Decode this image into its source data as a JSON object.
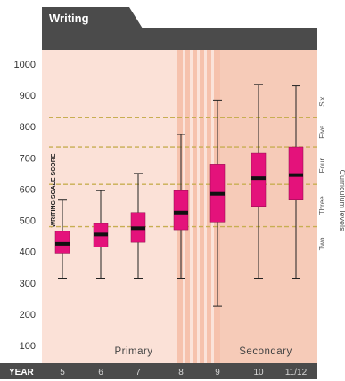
{
  "header": {
    "title": "Writing"
  },
  "chart_data": {
    "type": "box",
    "ylabel": "WRITING SCALE SCORE",
    "ylim": [
      0,
      1050
    ],
    "yticks": [
      "100",
      "200",
      "300",
      "400",
      "500",
      "600",
      "700",
      "800",
      "900",
      "1000"
    ],
    "x_axis_label": "YEAR",
    "categories": [
      "5",
      "6",
      "7",
      "8",
      "9",
      "10",
      "11/12"
    ],
    "series": [
      {
        "boxes": [
          {
            "category": "5",
            "min": 315,
            "q1": 395,
            "median": 425,
            "q3": 465,
            "max": 565
          },
          {
            "category": "6",
            "min": 315,
            "q1": 415,
            "median": 455,
            "q3": 490,
            "max": 595
          },
          {
            "category": "7",
            "min": 315,
            "q1": 430,
            "median": 475,
            "q3": 525,
            "max": 650
          },
          {
            "category": "8",
            "min": 315,
            "q1": 470,
            "median": 525,
            "q3": 595,
            "max": 775
          },
          {
            "category": "9",
            "min": 225,
            "q1": 495,
            "median": 585,
            "q3": 680,
            "max": 885
          },
          {
            "category": "10",
            "min": 315,
            "q1": 545,
            "median": 635,
            "q3": 715,
            "max": 935
          },
          {
            "category": "11/12",
            "min": 315,
            "q1": 565,
            "median": 645,
            "q3": 735,
            "max": 930
          }
        ]
      }
    ],
    "phases": [
      {
        "label": "Primary"
      },
      {
        "label": "Secondary"
      }
    ],
    "curriculum": {
      "title": "Curriculum levels",
      "thresholds": [
        480,
        615,
        735,
        830
      ],
      "levels": [
        {
          "label": "Two",
          "center": 425
        },
        {
          "label": "Three",
          "center": 548
        },
        {
          "label": "Four",
          "center": 675
        },
        {
          "label": "Five",
          "center": 783
        },
        {
          "label": "Six",
          "center": 880
        }
      ]
    },
    "colors": {
      "box_fill": "#e4127b",
      "median": "#111111",
      "whisker": "#222222",
      "threshold_line": "#c8ae52",
      "primary_bg": "#fbe1d7",
      "secondary_bg": "#f6cbb8",
      "transition_stripe": "#f6c2ad",
      "header_bar": "#4b4b4b",
      "axis_bar": "#4b4b4b"
    }
  }
}
